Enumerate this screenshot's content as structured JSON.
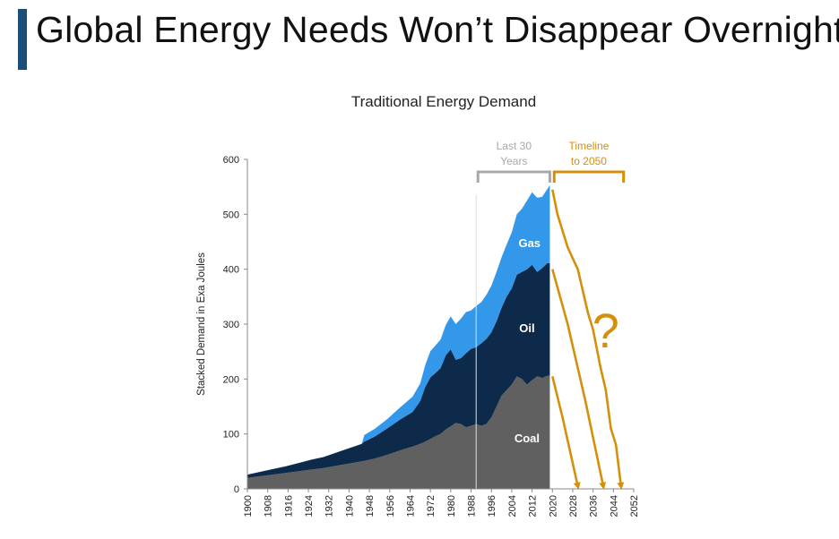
{
  "page_title": "Global Energy Needs Won’t Disappear Overnight",
  "chart_data": {
    "type": "area",
    "title": "Traditional Energy Demand",
    "xlabel": "",
    "ylabel": "Stacked Demand in Exa Joules",
    "xlim": [
      1900,
      2052
    ],
    "ylim": [
      0,
      600
    ],
    "y_ticks": [
      0,
      100,
      200,
      300,
      400,
      500,
      600
    ],
    "x_ticks": [
      1900,
      1908,
      1916,
      1924,
      1932,
      1940,
      1948,
      1956,
      1964,
      1972,
      1980,
      1988,
      1996,
      2004,
      2012,
      2020,
      2028,
      2036,
      2044,
      2052
    ],
    "stacked": true,
    "x": [
      1900,
      1905,
      1910,
      1915,
      1920,
      1925,
      1930,
      1935,
      1940,
      1945,
      1946,
      1950,
      1955,
      1960,
      1965,
      1968,
      1970,
      1972,
      1974,
      1976,
      1978,
      1980,
      1982,
      1984,
      1986,
      1988,
      1990,
      1992,
      1994,
      1996,
      1998,
      2000,
      2002,
      2004,
      2006,
      2008,
      2010,
      2012,
      2014,
      2016,
      2018,
      2019
    ],
    "series": [
      {
        "name": "Coal",
        "color": "#606060",
        "values": [
          20,
          23,
          26,
          29,
          32,
          35,
          38,
          42,
          46,
          50,
          51,
          55,
          62,
          70,
          77,
          82,
          86,
          91,
          96,
          100,
          108,
          114,
          120,
          118,
          112,
          115,
          118,
          115,
          118,
          130,
          150,
          170,
          180,
          190,
          205,
          200,
          190,
          198,
          205,
          202,
          206,
          206
        ]
      },
      {
        "name": "Oil",
        "color": "#0d2a4a",
        "values": [
          6,
          8,
          10,
          12,
          15,
          18,
          20,
          24,
          28,
          32,
          35,
          40,
          48,
          56,
          63,
          78,
          100,
          112,
          115,
          120,
          135,
          140,
          115,
          120,
          135,
          140,
          140,
          150,
          155,
          155,
          155,
          160,
          170,
          175,
          185,
          195,
          210,
          210,
          190,
          200,
          205,
          205
        ]
      },
      {
        "name": "Gas",
        "color": "#3398ea",
        "values": [
          0,
          0,
          0,
          0,
          0,
          0,
          0,
          0,
          0,
          0,
          12,
          14,
          17,
          22,
          28,
          32,
          40,
          48,
          50,
          52,
          55,
          60,
          65,
          72,
          75,
          70,
          75,
          75,
          80,
          85,
          90,
          92,
          95,
          102,
          110,
          115,
          125,
          132,
          135,
          130,
          135,
          142
        ]
      }
    ],
    "annotations": {
      "last_30": {
        "label_line1": "Last 30",
        "label_line2": "Years",
        "color": "#a8a8a8",
        "x_start": 1990,
        "x_end": 2019
      },
      "timeline": {
        "label_line1": "Timeline",
        "label_line2": "to 2050",
        "color": "#d4900a",
        "x_start": 2020,
        "x_end": 2048
      },
      "question_mark": "?"
    },
    "arrow_color": "#d4900a"
  }
}
